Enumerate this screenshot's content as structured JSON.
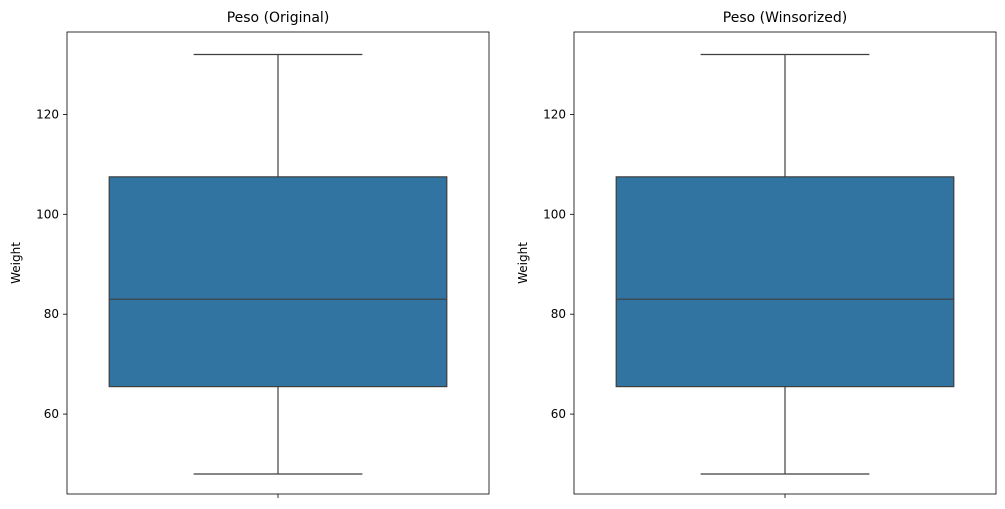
{
  "chart_data": [
    {
      "type": "box",
      "title": "Peso (Original)",
      "ylabel": "Weight",
      "xlabel": "",
      "ylim": [
        44,
        136.5
      ],
      "yticks": [
        60,
        80,
        100,
        120
      ],
      "grid": false,
      "box": {
        "whisker_low": 48,
        "q1": 65.5,
        "median": 83,
        "q3": 107.5,
        "whisker_high": 132
      },
      "color": "#3274a1"
    },
    {
      "type": "box",
      "title": "Peso (Winsorized)",
      "ylabel": "Weight",
      "xlabel": "",
      "ylim": [
        44,
        136.5
      ],
      "yticks": [
        60,
        80,
        100,
        120
      ],
      "grid": false,
      "box": {
        "whisker_low": 48,
        "q1": 65.5,
        "median": 83,
        "q3": 107.5,
        "whisker_high": 132
      },
      "color": "#3274a1"
    }
  ]
}
